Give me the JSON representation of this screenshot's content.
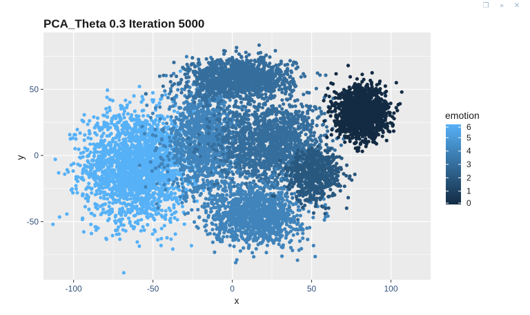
{
  "window_controls": {
    "restore": "❐",
    "collapse": "»",
    "close": "✕"
  },
  "chart_data": {
    "type": "scatter",
    "title": "PCA_Theta 0.3 Iteration 5000",
    "xlabel": "x",
    "ylabel": "y",
    "xlim": [
      -119,
      125
    ],
    "ylim": [
      -94,
      93
    ],
    "x_ticks": [
      -100,
      -50,
      0,
      50,
      100
    ],
    "y_ticks": [
      -50,
      0,
      50
    ],
    "x_tick_labels": [
      "-100",
      "-50",
      "0",
      "50",
      "100"
    ],
    "y_tick_labels": [
      "-50",
      "0",
      "50"
    ],
    "grid": true,
    "legend": {
      "title": "emotion",
      "placement": "right",
      "type": "continuous",
      "range": [
        0,
        6
      ],
      "ticks": [
        "0",
        "1",
        "2",
        "3",
        "4",
        "5",
        "6"
      ]
    },
    "color_scale": {
      "low": "#132b43",
      "high": "#56b1f7"
    },
    "series": [
      {
        "color_value": 6,
        "cx": -60,
        "cy": -8,
        "sx": 30,
        "sy": 38,
        "count": 2200
      },
      {
        "color_value": 4,
        "cx": -18,
        "cy": 12,
        "sx": 22,
        "sy": 38,
        "count": 1300
      },
      {
        "color_value": 3,
        "cx": 5,
        "cy": 58,
        "sx": 30,
        "sy": 14,
        "count": 1200
      },
      {
        "color_value": 3,
        "cx": 25,
        "cy": 8,
        "sx": 30,
        "sy": 30,
        "count": 1500
      },
      {
        "color_value": 4,
        "cx": 15,
        "cy": -45,
        "sx": 25,
        "sy": 20,
        "count": 1200
      },
      {
        "color_value": 2,
        "cx": 52,
        "cy": -15,
        "sx": 15,
        "sy": 18,
        "count": 600
      },
      {
        "color_value": 0,
        "cx": 82,
        "cy": 32,
        "sx": 14,
        "sy": 17,
        "count": 1600
      }
    ]
  }
}
